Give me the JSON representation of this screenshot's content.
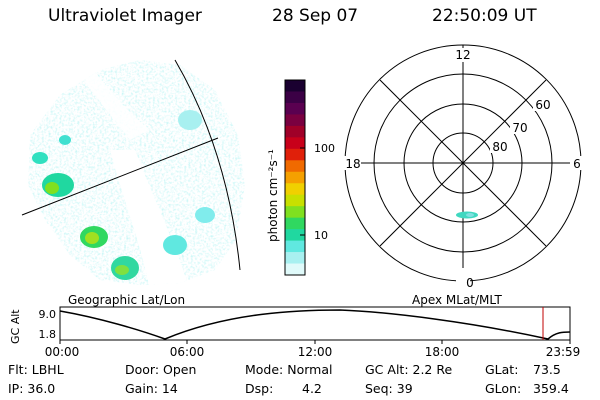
{
  "header": {
    "instrument": "Ultraviolet Imager",
    "date": "28 Sep 07",
    "time": "22:50:09 UT"
  },
  "colorbar": {
    "unit_label": "photon cm⁻²s⁻¹",
    "ticks": [
      "100",
      "10"
    ],
    "colors": [
      "#1a0030",
      "#3b0045",
      "#5a0050",
      "#7a0040",
      "#a00028",
      "#c8001a",
      "#e0200a",
      "#f06a00",
      "#f5a000",
      "#f0d000",
      "#c8e000",
      "#80e020",
      "#30d860",
      "#20d8a0",
      "#60e8e0",
      "#a8f0f0",
      "#e0fafa"
    ]
  },
  "polar_plot": {
    "mlt_labels": {
      "top": "12",
      "bottom": "0",
      "left": "18",
      "right": "6"
    },
    "lat_labels": [
      "60",
      "70",
      "80"
    ]
  },
  "timeline": {
    "left_title": "Geographic Lat/Lon",
    "right_title": "Apex MLat/MLT",
    "y_axis_label": "GC Alt",
    "y_ticks": [
      "9.0",
      "1.8"
    ],
    "x_ticks": [
      "00:00",
      "06:00",
      "12:00",
      "18:00",
      "23:59"
    ],
    "marker_color": "#c00000"
  },
  "info": {
    "flt": "Flt: LBHL",
    "ip": "IP: 36.0",
    "door": "Door: Open",
    "gain": "Gain: 14",
    "mode": "Mode: Normal",
    "dsp_label": "Dsp:",
    "dsp_value": "4.2",
    "gc_alt": "GC Alt: 2.2 Re",
    "seq": "Seq: 39",
    "glat": "GLat:",
    "glat_value": "73.5",
    "glon": "GLon:",
    "glon_value": "359.4"
  }
}
